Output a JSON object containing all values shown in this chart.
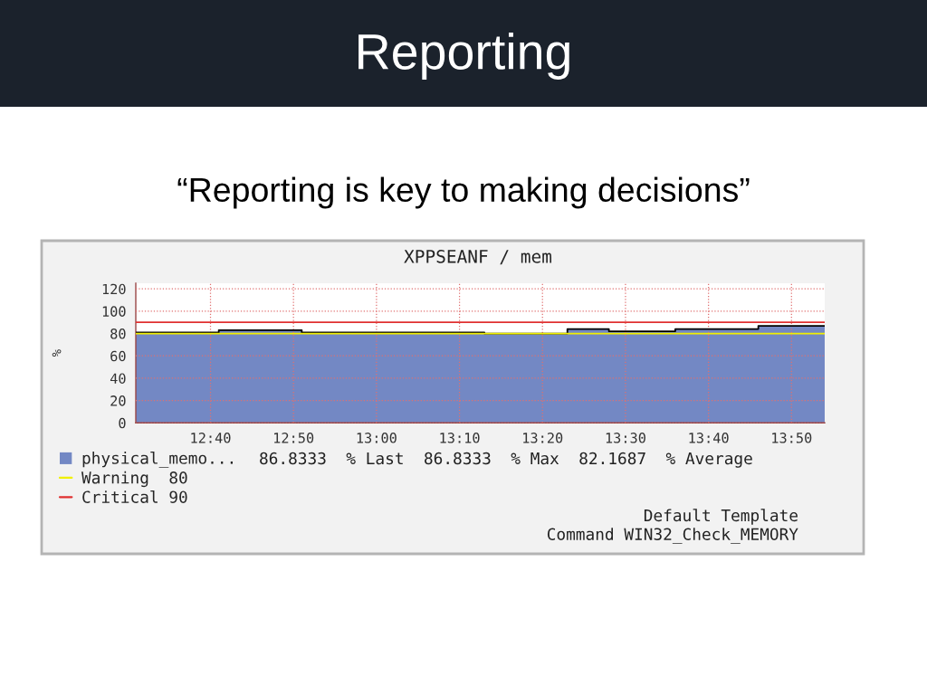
{
  "chart_data": {
    "type": "area",
    "title": "Reporting",
    "subtitle": "“Reporting is key to making decisions”",
    "ylabel": "%",
    "x": [
      12.5167,
      12.6833,
      12.6833,
      12.85,
      12.85,
      13.2167,
      13.2167,
      13.3833,
      13.3833,
      13.4667,
      13.4667,
      13.6,
      13.6,
      13.7667,
      13.7667,
      13.9
    ],
    "series": [
      {
        "name": "physical_memo...",
        "color": "#7388c4",
        "values": [
          81,
          81,
          83,
          83,
          81,
          81,
          80,
          80,
          84,
          84,
          82,
          82,
          84,
          84,
          86.8333,
          86.8333
        ]
      }
    ],
    "xlim": [
      12.5167,
      13.9
    ],
    "xticks": [
      {
        "value": 12.6667,
        "label": "12:40"
      },
      {
        "value": 12.8333,
        "label": "12:50"
      },
      {
        "value": 13,
        "label": "13:00"
      },
      {
        "value": 13.1667,
        "label": "13:10"
      },
      {
        "value": 13.3333,
        "label": "13:20"
      },
      {
        "value": 13.5,
        "label": "13:30"
      },
      {
        "value": 13.6667,
        "label": "13:40"
      },
      {
        "value": 13.8333,
        "label": "13:50"
      }
    ],
    "ylim": [
      0,
      125
    ],
    "yticks": [
      0,
      20,
      40,
      60,
      80,
      100,
      120
    ],
    "ref_lines": [
      {
        "axis": "y",
        "value": 80,
        "label": "Warning  80",
        "color": "#f0f000"
      },
      {
        "axis": "y",
        "value": 90,
        "label": "Critical 90",
        "color": "#e03030"
      }
    ],
    "grid": true,
    "legend": "bottom left",
    "annotations": [
      "XPPSEANF / mem",
      "86.8333  % Last",
      "86.8333  % Max",
      "82.1687  % Average",
      "Default Template",
      "Command WIN32_Check_MEMORY"
    ]
  }
}
